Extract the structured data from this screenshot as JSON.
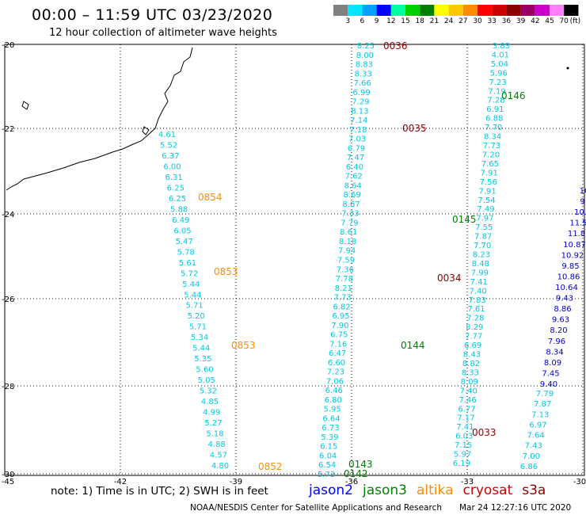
{
  "header": {
    "title": "00:00 – 11:59 UTC 03/23/2020",
    "subtitle": "12 hour collection of altimeter wave heights"
  },
  "colorbar": {
    "colors": [
      "#808080",
      "#00e5ff",
      "#00a0ff",
      "#0000ff",
      "#00ffa0",
      "#00d000",
      "#008000",
      "#ffff00",
      "#ffc800",
      "#ff8c00",
      "#ff0000",
      "#cc0000",
      "#8b0000",
      "#990066",
      "#cc00cc",
      "#ff80ff",
      "#000000"
    ],
    "labels": [
      "3",
      "6",
      "9",
      "12",
      "15",
      "18",
      "21",
      "24",
      "27",
      "30",
      "33",
      "36",
      "39",
      "42",
      "45",
      "70",
      "(ft)"
    ]
  },
  "axes": {
    "lon_ticks": [
      "-45",
      "-42",
      "-39",
      "-36",
      "-33",
      "-30"
    ],
    "lat_ticks": [
      "-20",
      "-22",
      "-24",
      "-26",
      "-28",
      "-30"
    ]
  },
  "tracks": {
    "jason3_0854": {
      "time": "0854",
      "values": [
        "4.61",
        "5.52",
        "6.37",
        "6.00",
        "6.31",
        "6.25",
        "6.25",
        "5.88",
        "6.49",
        "6.05",
        "5.47",
        "5.78",
        "5.61",
        "5.72",
        "5.44",
        "5.44",
        "5.71",
        "5.20",
        "5.71",
        "5.34",
        "5.44",
        "5.35",
        "5.60",
        "5.05",
        "5.32",
        "4.85",
        "4.99",
        "5.27",
        "5.18",
        "4.88",
        "4.57",
        "4.80"
      ]
    },
    "saral_labels": [
      "0854",
      "0853",
      "0853",
      "0852"
    ],
    "track_0036": {
      "time": "0036",
      "values": [
        "8.25",
        "8.00",
        "8.83",
        "8.33",
        "7.66",
        "6.99",
        "7.29",
        "8.13",
        "7.14",
        "7.18",
        "7.03",
        "6.79",
        "7.47",
        "6.40",
        "7.62",
        "8.64",
        "8.69",
        "8.67",
        "7.33",
        "7.79",
        "8.61",
        "8.18",
        "7.94",
        "7.59",
        "7.36",
        "7.78",
        "8.21",
        "7.73",
        "6.82",
        "6.95",
        "7.90",
        "6.75",
        "7.16",
        "6.47",
        "6.60",
        "7.23",
        "7.06",
        "6.46",
        "6.80",
        "5.95",
        "6.64",
        "6.73",
        "5.39",
        "6.15",
        "6.04",
        "6.54",
        "5.73"
      ]
    },
    "track_0035_label": "0035",
    "track_0034_label": "0034",
    "track_0033": {
      "time": "0033",
      "values": [
        "3.83",
        "4.01",
        "5.04",
        "5.96",
        "7.23",
        "7.19",
        "7.28",
        "6.91",
        "6.88",
        "7.70",
        "8.34",
        "7.73",
        "7.20",
        "7.65",
        "7.91",
        "7.56",
        "7.91",
        "7.54",
        "7.49",
        "7.97",
        "7.55",
        "7.87",
        "7.70",
        "8.23",
        "8.48",
        "7.99",
        "7.41",
        "7.40",
        "7.83",
        "7.61",
        "7.28",
        "8.29",
        "7.77",
        "6.69",
        "8.43",
        "8.82",
        "8.33",
        "8.09",
        "7.40",
        "7.46",
        "6.77",
        "7.17",
        "7.41",
        "6.03",
        "7.15",
        "5.97",
        "6.19"
      ]
    },
    "jason3_0146": {
      "time": "0146",
      "values": [
        "7.79",
        "7.87",
        "7.13",
        "6.97",
        "7.64",
        "7.43",
        "7.00",
        "6.86"
      ]
    },
    "jason3_labels": [
      "0146",
      "0145",
      "0144",
      "0143",
      "0142"
    ],
    "east_track": {
      "values": [
        "10",
        "9",
        "10.",
        "11.5",
        "11.8",
        "10.87",
        "10.92",
        "9.85",
        "10.86",
        "10.64",
        "9.43",
        "8.86",
        "9.63",
        "8.20",
        "7.96",
        "8.34",
        "8.09",
        "7.45",
        "9.40"
      ]
    }
  },
  "footer": {
    "note": "note: 1) Time is in UTC; 2) SWH is in feet",
    "legend": [
      {
        "name": "jason2",
        "color": "#0000ff"
      },
      {
        "name": "jason3",
        "color": "#008000"
      },
      {
        "name": "altika",
        "color": "#ff8c00"
      },
      {
        "name": "cryosat",
        "color": "#cc0000"
      },
      {
        "name": "s3a",
        "color": "#8b0000"
      }
    ],
    "credit": "NOAA/NESDIS Center for Satellite Applications and Research",
    "date": "Mar 24 12:27:16 UTC 2020"
  }
}
